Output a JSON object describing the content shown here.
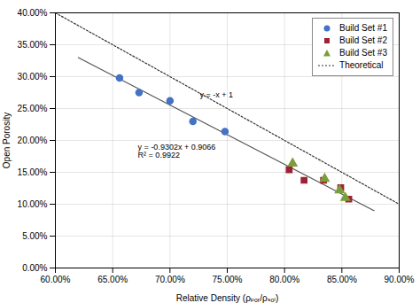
{
  "chart_data": {
    "type": "scatter",
    "xlabel": "Relative Density (ρₚₒᵣ/ρₛₒₗ)",
    "ylabel": "Open Porosity",
    "xlim": [
      0.6,
      0.9
    ],
    "ylim": [
      0.0,
      0.4
    ],
    "xticks": [
      {
        "value": 0.6,
        "label": "60.00%"
      },
      {
        "value": 0.65,
        "label": "65.00%"
      },
      {
        "value": 0.7,
        "label": "70.00%"
      },
      {
        "value": 0.75,
        "label": "75.00%"
      },
      {
        "value": 0.8,
        "label": "80.00%"
      },
      {
        "value": 0.85,
        "label": "85.00%"
      },
      {
        "value": 0.9,
        "label": "90.00%"
      }
    ],
    "yticks": [
      {
        "value": 0.0,
        "label": "0.00%"
      },
      {
        "value": 0.05,
        "label": "5.00%"
      },
      {
        "value": 0.1,
        "label": "10.00%"
      },
      {
        "value": 0.15,
        "label": "15.00%"
      },
      {
        "value": 0.2,
        "label": "20.00%"
      },
      {
        "value": 0.25,
        "label": "25.00%"
      },
      {
        "value": 0.3,
        "label": "30.00%"
      },
      {
        "value": 0.35,
        "label": "35.00%"
      },
      {
        "value": 0.4,
        "label": "40.00%"
      }
    ],
    "grid": true,
    "legend": "upper right",
    "series": [
      {
        "name": "Build Set #1",
        "type": "scatter",
        "color": "#4472C4",
        "marker": "circle",
        "x": [
          0.656,
          0.673,
          0.7,
          0.72,
          0.748
        ],
        "values": [
          0.298,
          0.275,
          0.262,
          0.23,
          0.214
        ]
      },
      {
        "name": "Build Set #2",
        "type": "scatter",
        "color": "#9B2335",
        "marker": "square",
        "x": [
          0.804,
          0.817,
          0.834,
          0.849,
          0.856
        ],
        "values": [
          0.154,
          0.1375,
          0.1375,
          0.126,
          0.108
        ]
      },
      {
        "name": "Build Set #3",
        "type": "scatter",
        "color": "#7B9E3A",
        "marker": "triangle",
        "x": [
          0.807,
          0.835,
          0.848,
          0.853
        ],
        "values": [
          0.164,
          0.14,
          0.122,
          0.11
        ]
      },
      {
        "name": "Theoretical",
        "type": "line",
        "color": "#333333",
        "line_style": "dotted",
        "x": [
          0.6,
          0.9
        ],
        "values": [
          0.4,
          0.1
        ]
      },
      {
        "type": "line",
        "color": "#555555",
        "line_style": "solid",
        "x": [
          0.62,
          0.878
        ],
        "values": [
          0.329876,
          0.0898844
        ]
      }
    ],
    "annotations": [
      {
        "text": "y = -x + 1",
        "x": 0.726,
        "y": 0.268
      },
      {
        "text": "y = -0.9302x + 0.9066\nR² = 0.9922",
        "x": 0.672,
        "y": 0.173
      }
    ]
  }
}
